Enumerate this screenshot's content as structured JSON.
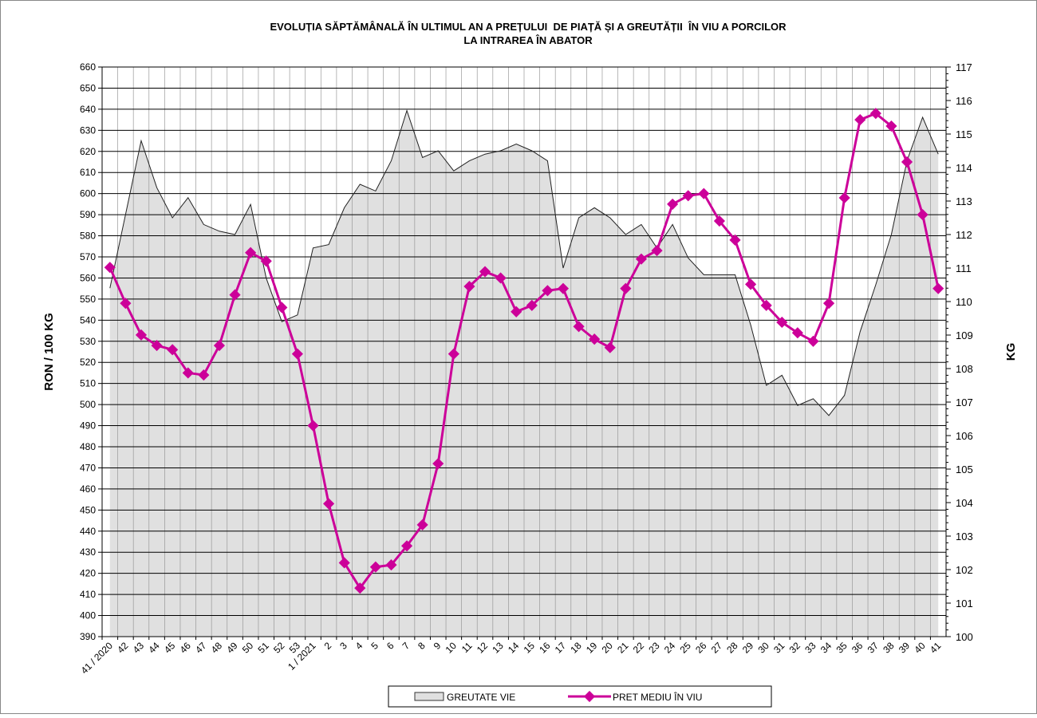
{
  "chart_data": {
    "type": "line",
    "title": [
      "EVOLUȚIA SĂPTĂMÂNALĂ ÎN ULTIMUL AN A PREȚULUI  DE PIAȚĂ ȘI A GREUTĂȚII  ÎN VIU A PORCILOR",
      "LA INTRAREA ÎN ABATOR"
    ],
    "y_label": "RON / 100 KG",
    "y2_label": "KG",
    "categories": [
      "41 / 2020",
      "42",
      "43",
      "44",
      "45",
      "46",
      "47",
      "48",
      "49",
      "50",
      "51",
      "52",
      "53",
      "1 / 2021",
      "2",
      "3",
      "4",
      "5",
      "6",
      "7",
      "8",
      "9",
      "10",
      "11",
      "12",
      "13",
      "14",
      "15",
      "16",
      "17",
      "18",
      "19",
      "20",
      "21",
      "22",
      "23",
      "24",
      "25",
      "26",
      "27",
      "28",
      "29",
      "30",
      "31",
      "32",
      "33",
      "34",
      "35",
      "36",
      "37",
      "38",
      "39",
      "40",
      "41"
    ],
    "series": [
      {
        "name": "GREUTATE VIE",
        "type": "area",
        "axis": "y2",
        "color": "#e0e0e0",
        "values": [
          110.4,
          112.6,
          114.8,
          113.4,
          112.5,
          113.1,
          112.3,
          112.1,
          112.0,
          112.9,
          110.7,
          109.4,
          109.6,
          111.6,
          111.7,
          112.8,
          113.5,
          113.3,
          114.2,
          115.7,
          114.3,
          114.5,
          113.9,
          114.2,
          114.4,
          114.5,
          114.7,
          114.5,
          114.2,
          111.0,
          112.5,
          112.8,
          112.5,
          112.0,
          112.3,
          111.6,
          112.3,
          111.3,
          110.8,
          110.8,
          110.8,
          109.3,
          107.5,
          107.8,
          106.9,
          107.1,
          106.6,
          107.2,
          109.1,
          110.5,
          112.0,
          114.2,
          115.5,
          114.4
        ]
      },
      {
        "name": "PRET MEDIU ÎN VIU",
        "type": "line",
        "color": "#cc0099",
        "values": [
          565,
          548,
          533,
          528,
          526,
          515,
          514,
          528,
          552,
          572,
          568,
          546,
          524,
          490,
          453,
          425,
          413,
          423,
          424,
          433,
          443,
          472,
          524,
          556,
          563,
          560,
          544,
          547,
          554,
          555,
          537,
          531,
          527,
          555,
          569,
          573,
          595,
          599,
          600,
          587,
          578,
          557,
          547,
          539,
          534,
          530,
          548,
          598,
          635,
          638,
          632,
          615,
          590,
          555
        ]
      }
    ],
    "ylim": [
      390,
      660
    ],
    "yticks": [
      390,
      400,
      410,
      420,
      430,
      440,
      450,
      460,
      470,
      480,
      490,
      500,
      510,
      520,
      530,
      540,
      550,
      560,
      570,
      580,
      590,
      600,
      610,
      620,
      630,
      640,
      650,
      660
    ],
    "y2lim": [
      100,
      117
    ],
    "y2ticks": [
      100,
      101,
      102,
      103,
      104,
      105,
      106,
      107,
      108,
      109,
      110,
      111,
      112,
      113,
      114,
      115,
      116,
      117
    ],
    "grid": true,
    "legend": "bottom"
  }
}
